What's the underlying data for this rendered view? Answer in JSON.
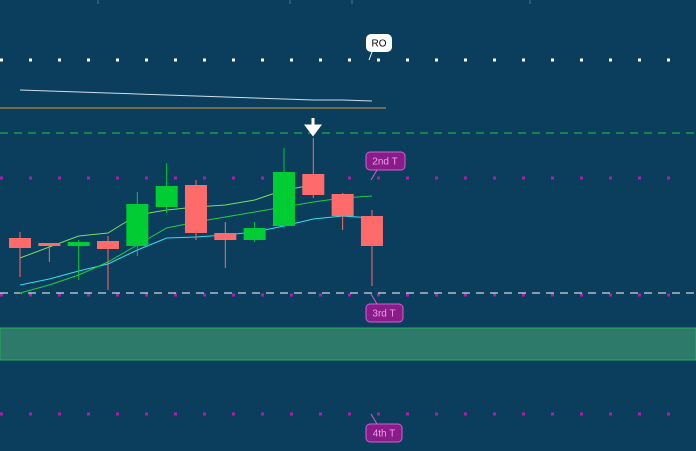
{
  "chart_data": {
    "type": "candlestick",
    "categories": [
      null,
      null,
      null,
      null,
      null,
      null,
      null,
      null,
      null,
      null,
      null,
      null,
      null
    ],
    "open": [
      213,
      208,
      205,
      210,
      205,
      244,
      266,
      218,
      211,
      225,
      277,
      257,
      235
    ],
    "high": [
      219,
      208,
      211,
      215,
      259,
      288,
      271,
      229,
      229,
      303,
      313,
      258,
      241
    ],
    "low": [
      174,
      189,
      171,
      161,
      195,
      238,
      211,
      183,
      209,
      223,
      253,
      221,
      165
    ],
    "close": [
      203,
      205,
      209,
      202,
      247,
      265,
      218,
      211,
      223,
      279,
      256,
      235,
      205
    ],
    "up_color": "#00cc33",
    "down_color": "#ff6b6b",
    "ylim": [
      0,
      451
    ],
    "series": [
      {
        "color": "#cfe0e8",
        "values": [
          361,
          360,
          359,
          358,
          357,
          356,
          355,
          354,
          353,
          352,
          351,
          351,
          350
        ]
      },
      {
        "color": "#33e0f0",
        "values": [
          166,
          172,
          180,
          187,
          201,
          213,
          214,
          216,
          219,
          225,
          232,
          235,
          233
        ]
      },
      {
        "color": "#22cc44",
        "values": [
          158,
          166,
          176,
          189,
          206,
          223,
          229,
          234,
          239,
          244,
          249,
          253,
          255
        ]
      },
      {
        "color": "#77dd66",
        "values": [
          193,
          204,
          215,
          218,
          236,
          241,
          244,
          246,
          251,
          261,
          266,
          null,
          null
        ]
      }
    ],
    "levels": [
      {
        "value": 391,
        "color": "#ffffff",
        "style": "dotted"
      },
      {
        "value": 343,
        "color": "#d89a40",
        "style": "solid"
      },
      {
        "value": 318,
        "color": "#22cc44",
        "style": "dashed"
      },
      {
        "value": 273,
        "color": "#aa22aa",
        "style": "dotted"
      },
      {
        "value": 158,
        "color": "#ffffff",
        "style": "dashed"
      },
      {
        "value": 156,
        "color": "#aa22aa",
        "style": "dotted"
      },
      {
        "value": 37,
        "color": "#aa22aa",
        "style": "dotted"
      }
    ],
    "zone": {
      "low": 91,
      "high": 123,
      "color": "#2e7a6a"
    },
    "annotations": [
      "RO",
      "2nd T",
      "3rd T",
      "4th T"
    ]
  }
}
